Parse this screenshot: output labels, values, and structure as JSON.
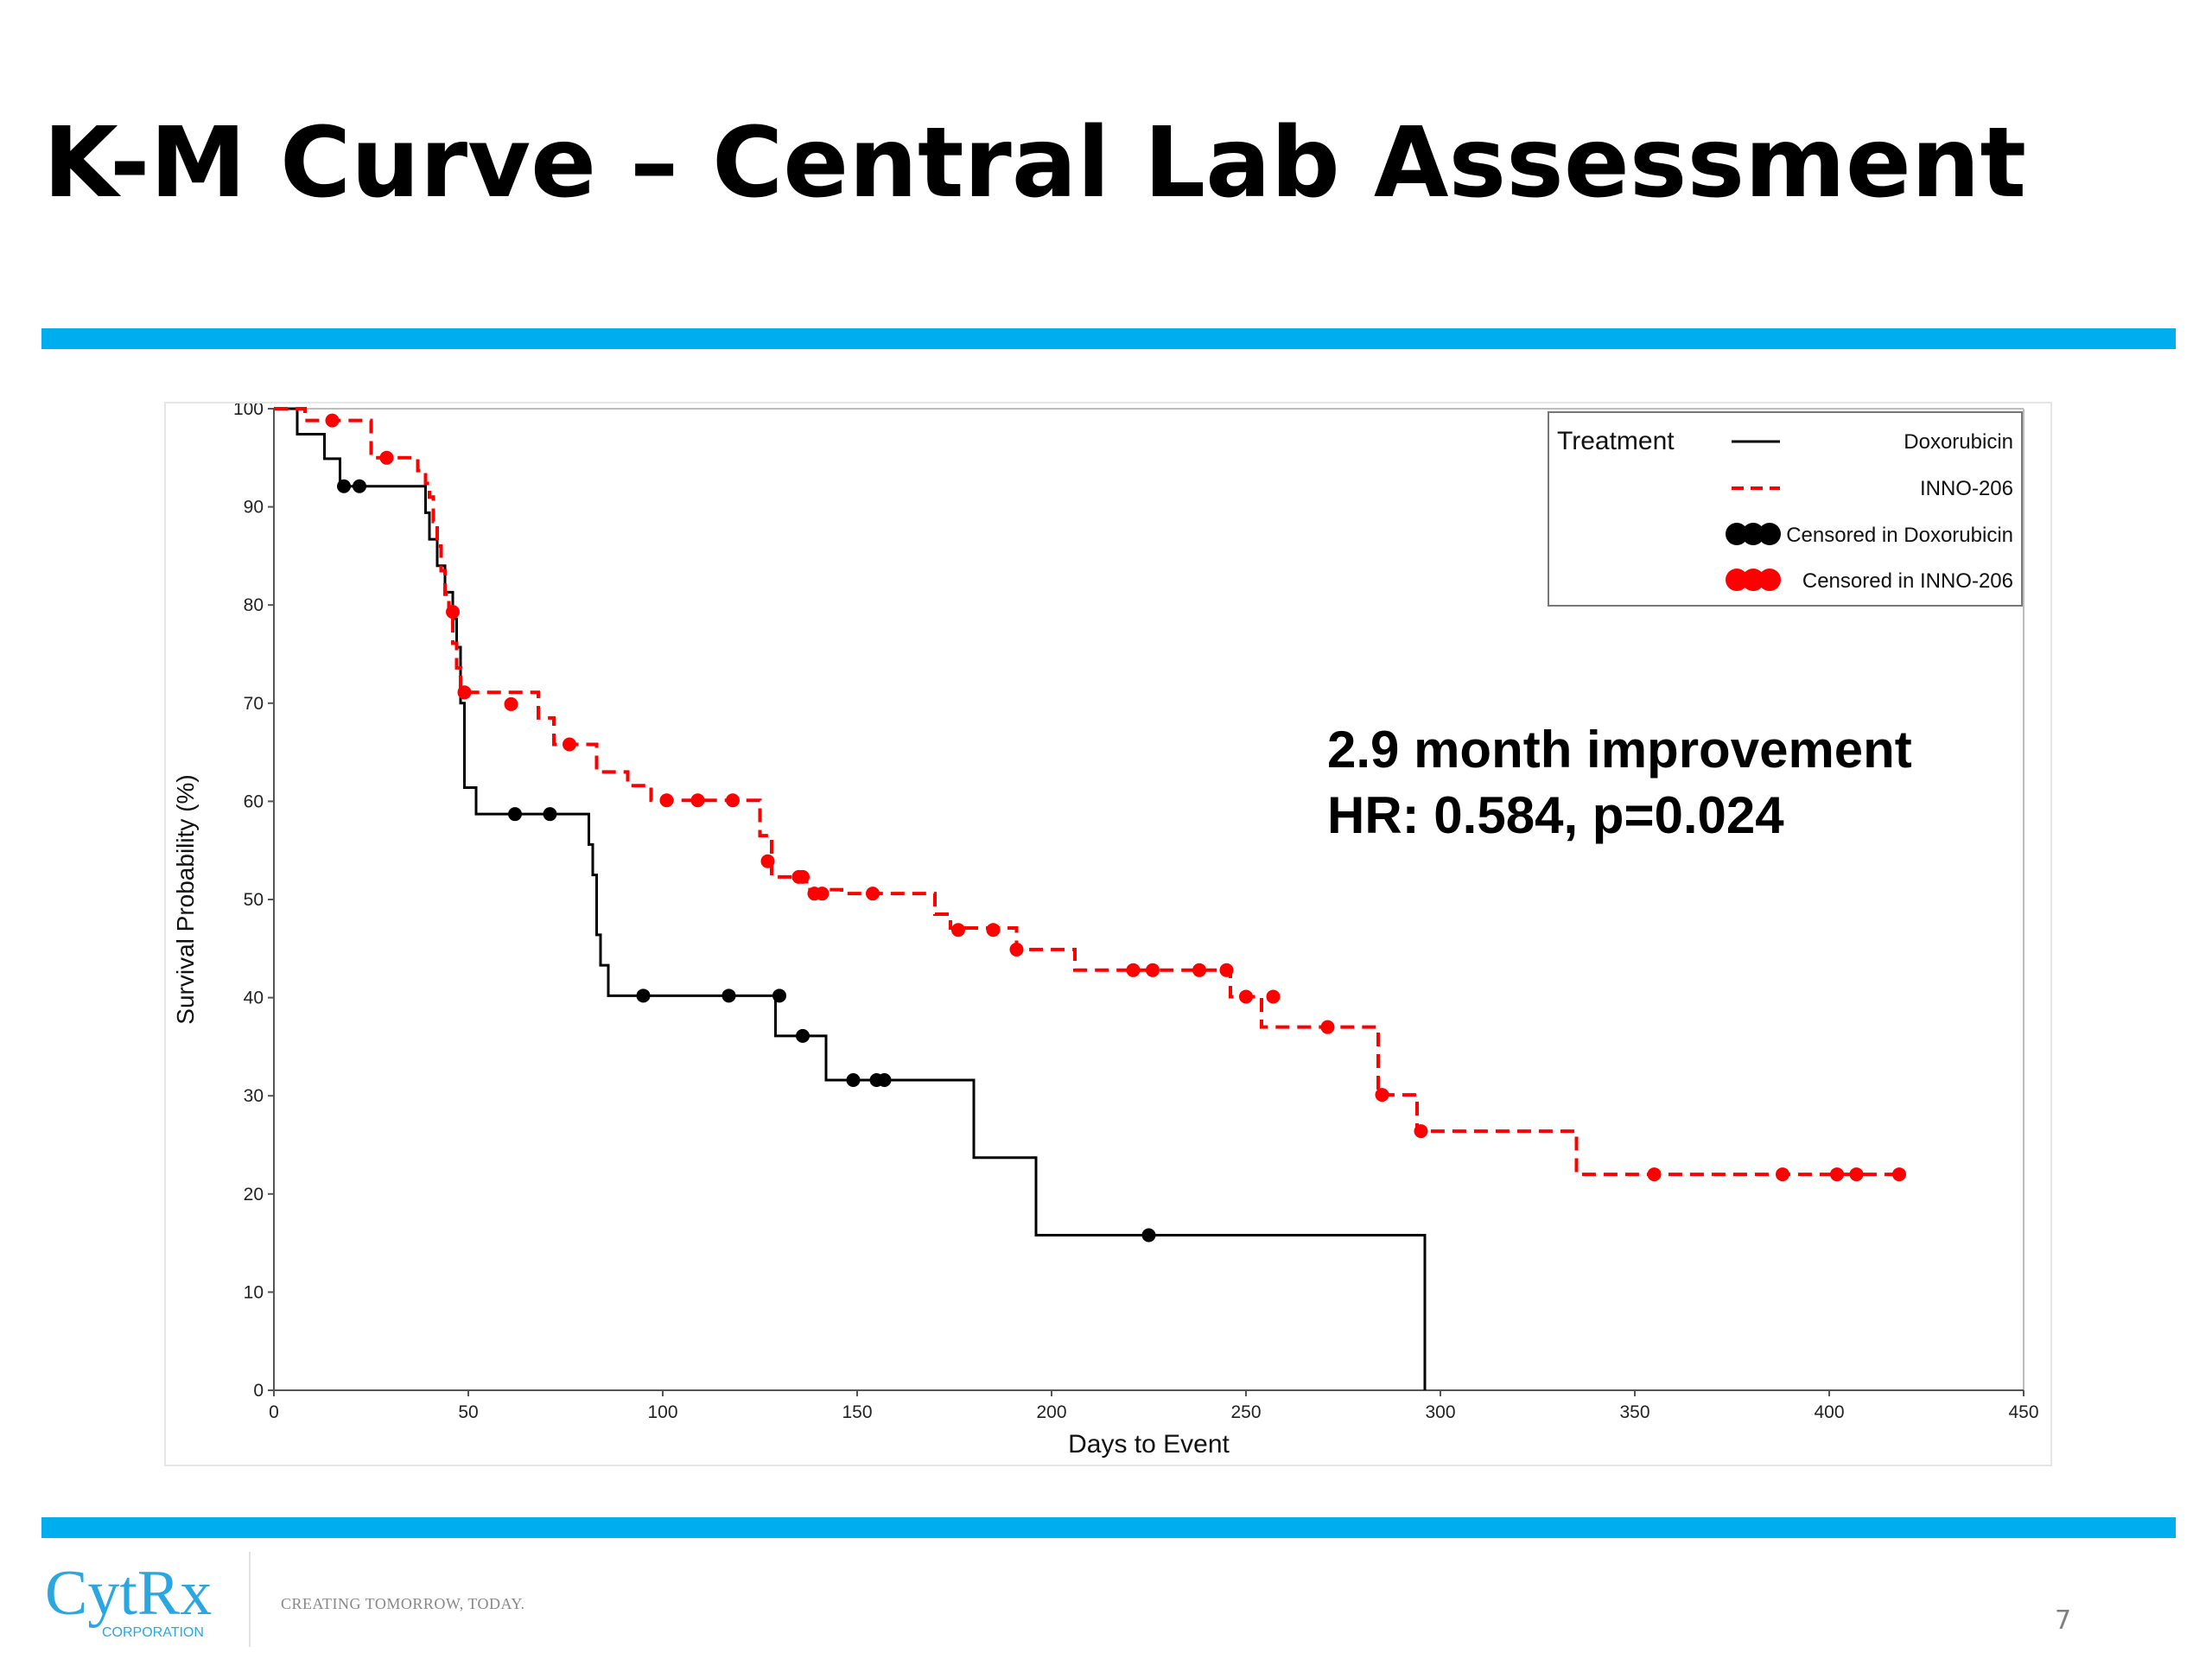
{
  "slide": {
    "title": "K-M Curve – Central Lab Assessment",
    "annotation": [
      "2.9 month improvement",
      "HR: 0.584, p=0.024"
    ],
    "logo_text": "CytRx",
    "logo_subtext": "CORPORATION",
    "tagline": "CREATING TOMORROW, TODAY.",
    "page_number": "7",
    "accent_color": "#00aeef"
  },
  "chart_data": {
    "type": "line",
    "step": true,
    "xlabel": "Days to Event",
    "ylabel": "Survival Probability (%)",
    "xlim": [
      0,
      450
    ],
    "ylim": [
      0,
      100
    ],
    "xticks": [
      0,
      50,
      100,
      150,
      200,
      250,
      300,
      350,
      400,
      450
    ],
    "yticks": [
      0,
      10,
      20,
      30,
      40,
      50,
      60,
      70,
      80,
      90,
      100
    ],
    "grid": false,
    "legend": {
      "title": "Treatment",
      "position": "top-right",
      "entries": [
        "Doxorubicin",
        "INNO-206",
        "Censored in Doxorubicin",
        "Censored in INNO-206"
      ]
    },
    "series": [
      {
        "name": "Doxorubicin",
        "color": "#000000",
        "dash": "solid",
        "x": [
          0,
          6,
          13,
          17,
          39,
          40,
          42,
          44,
          46,
          47,
          48,
          49,
          52,
          81,
          82,
          83,
          84,
          86,
          89,
          129,
          132,
          142,
          180,
          196,
          296,
          296
        ],
        "y": [
          100,
          97.4,
          94.9,
          92.1,
          89.4,
          86.7,
          84.0,
          81.3,
          78.6,
          75.7,
          70.0,
          61.4,
          58.7,
          55.6,
          52.5,
          46.4,
          43.3,
          40.2,
          40.2,
          36.1,
          36.1,
          31.6,
          23.7,
          15.8,
          15.8,
          0
        ],
        "censored": [
          {
            "x": 18,
            "y": 92.1
          },
          {
            "x": 22,
            "y": 92.1
          },
          {
            "x": 62,
            "y": 58.7
          },
          {
            "x": 71,
            "y": 58.7
          },
          {
            "x": 95,
            "y": 40.2
          },
          {
            "x": 117,
            "y": 40.2
          },
          {
            "x": 130,
            "y": 40.2
          },
          {
            "x": 136,
            "y": 36.1
          },
          {
            "x": 149,
            "y": 31.6
          },
          {
            "x": 155,
            "y": 31.6
          },
          {
            "x": 157,
            "y": 31.6
          },
          {
            "x": 225,
            "y": 15.8
          }
        ]
      },
      {
        "name": "INNO-206",
        "color": "#ff0000",
        "dash": "dashed",
        "x": [
          0,
          8,
          25,
          37,
          39,
          40,
          41,
          42,
          43,
          44,
          45,
          46,
          47,
          48,
          68,
          72,
          83,
          91,
          97,
          125,
          128,
          137,
          146,
          170,
          174,
          191,
          206,
          246,
          254,
          284,
          294,
          335
        ],
        "y": [
          100,
          98.8,
          95.0,
          93.7,
          92.4,
          91.0,
          88.5,
          86.0,
          83.5,
          81.1,
          78.6,
          76.1,
          73.6,
          71.1,
          68.5,
          65.8,
          63.0,
          61.6,
          60.1,
          56.5,
          52.3,
          51.0,
          50.6,
          48.5,
          47.1,
          44.9,
          42.8,
          40.1,
          37.0,
          30.1,
          26.4,
          22.0
        ],
        "end_x": 418,
        "censored": [
          {
            "x": 15,
            "y": 98.8
          },
          {
            "x": 29,
            "y": 95.0
          },
          {
            "x": 46,
            "y": 79.3
          },
          {
            "x": 49,
            "y": 71.1
          },
          {
            "x": 61,
            "y": 69.9
          },
          {
            "x": 76,
            "y": 65.8
          },
          {
            "x": 101,
            "y": 60.1
          },
          {
            "x": 109,
            "y": 60.1
          },
          {
            "x": 118,
            "y": 60.1
          },
          {
            "x": 127,
            "y": 53.9
          },
          {
            "x": 135,
            "y": 52.3
          },
          {
            "x": 136,
            "y": 52.3
          },
          {
            "x": 139,
            "y": 50.6
          },
          {
            "x": 141,
            "y": 50.6
          },
          {
            "x": 154,
            "y": 50.6
          },
          {
            "x": 176,
            "y": 46.9
          },
          {
            "x": 185,
            "y": 46.9
          },
          {
            "x": 191,
            "y": 44.9
          },
          {
            "x": 221,
            "y": 42.8
          },
          {
            "x": 226,
            "y": 42.8
          },
          {
            "x": 238,
            "y": 42.8
          },
          {
            "x": 245,
            "y": 42.8
          },
          {
            "x": 250,
            "y": 40.1
          },
          {
            "x": 257,
            "y": 40.1
          },
          {
            "x": 271,
            "y": 37.0
          },
          {
            "x": 285,
            "y": 30.1
          },
          {
            "x": 295,
            "y": 26.4
          },
          {
            "x": 355,
            "y": 22.0
          },
          {
            "x": 388,
            "y": 22.0
          },
          {
            "x": 402,
            "y": 22.0
          },
          {
            "x": 407,
            "y": 22.0
          },
          {
            "x": 418,
            "y": 22.0
          }
        ]
      }
    ]
  }
}
